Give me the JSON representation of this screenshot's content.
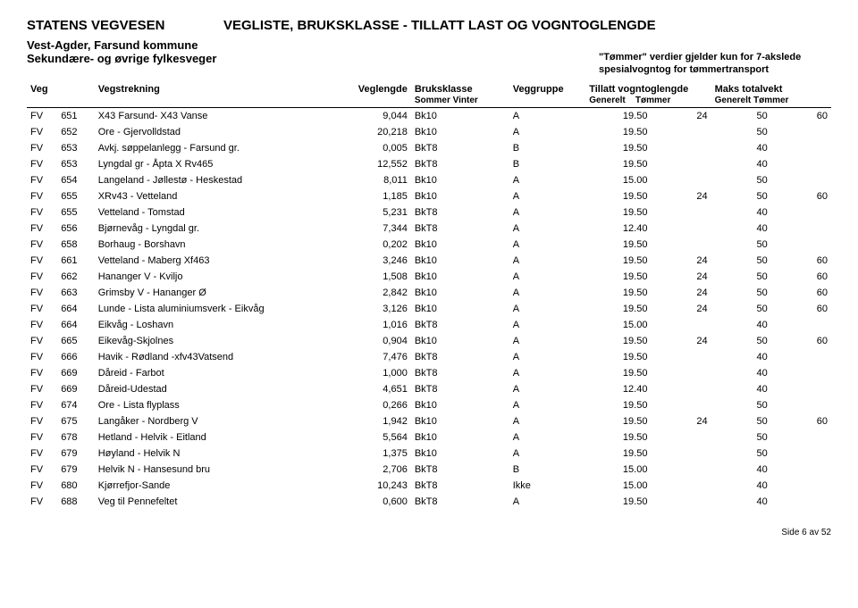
{
  "header": {
    "agency": "STATENS VEGVESEN",
    "title": "VEGLISTE, BRUKSKLASSE - TILLATT LAST OG VOGNTOGLENGDE",
    "region": "Vest-Agder, Farsund kommune",
    "subregion": "Sekundære- og øvrige fylkesveger",
    "timber_note_1": "\"Tømmer\" verdier gjelder kun for 7-akslede",
    "timber_note_2": "spesialvogntog for tømmertransport"
  },
  "columns": {
    "veg": "Veg",
    "strek": "Vegstrekning",
    "veglengde": "Veglengde",
    "bruksklasse": "Bruksklasse",
    "bruksklasse_sub": "Sommer  Vinter",
    "veggruppe": "Veggruppe",
    "vogntog": "Tillatt vogntoglengde",
    "vogntog_g": "Generelt",
    "vogntog_t": "Tømmer",
    "maks": "Maks totalvekt",
    "maks_g": "Generelt",
    "maks_t": "Tømmer"
  },
  "rows": [
    {
      "p": "FV",
      "nr": "651",
      "name": "X43 Farsund- X43 Vanse",
      "len": "9,044",
      "bk": "Bk10",
      "grp": "A",
      "vg": "19.50",
      "vt": "24",
      "mg": "50",
      "mt": "60"
    },
    {
      "p": "FV",
      "nr": "652",
      "name": "Ore - Gjervolldstad",
      "len": "20,218",
      "bk": "Bk10",
      "grp": "A",
      "vg": "19.50",
      "vt": "",
      "mg": "50",
      "mt": ""
    },
    {
      "p": "FV",
      "nr": "653",
      "name": "Avkj. søppelanlegg - Farsund gr.",
      "len": "0,005",
      "bk": "BkT8",
      "grp": "B",
      "vg": "19.50",
      "vt": "",
      "mg": "40",
      "mt": ""
    },
    {
      "p": "FV",
      "nr": "653",
      "name": "Lyngdal gr - Åpta X Rv465",
      "len": "12,552",
      "bk": "BkT8",
      "grp": "B",
      "vg": "19.50",
      "vt": "",
      "mg": "40",
      "mt": ""
    },
    {
      "p": "FV",
      "nr": "654",
      "name": "Langeland - Jøllestø - Heskestad",
      "len": "8,011",
      "bk": "Bk10",
      "grp": "A",
      "vg": "15.00",
      "vt": "",
      "mg": "50",
      "mt": ""
    },
    {
      "p": "FV",
      "nr": "655",
      "name": "XRv43 - Vetteland",
      "len": "1,185",
      "bk": "Bk10",
      "grp": "A",
      "vg": "19.50",
      "vt": "24",
      "mg": "50",
      "mt": "60"
    },
    {
      "p": "FV",
      "nr": "655",
      "name": "Vetteland - Tomstad",
      "len": "5,231",
      "bk": "BkT8",
      "grp": "A",
      "vg": "19.50",
      "vt": "",
      "mg": "40",
      "mt": ""
    },
    {
      "p": "FV",
      "nr": "656",
      "name": "Bjørnevåg - Lyngdal gr.",
      "len": "7,344",
      "bk": "BkT8",
      "grp": "A",
      "vg": "12.40",
      "vt": "",
      "mg": "40",
      "mt": ""
    },
    {
      "p": "FV",
      "nr": "658",
      "name": "Borhaug - Borshavn",
      "len": "0,202",
      "bk": "Bk10",
      "grp": "A",
      "vg": "19.50",
      "vt": "",
      "mg": "50",
      "mt": ""
    },
    {
      "p": "FV",
      "nr": "661",
      "name": "Vetteland - Maberg Xf463",
      "len": "3,246",
      "bk": "Bk10",
      "grp": "A",
      "vg": "19.50",
      "vt": "24",
      "mg": "50",
      "mt": "60"
    },
    {
      "p": "FV",
      "nr": "662",
      "name": "Hananger V - Kviljo",
      "len": "1,508",
      "bk": "Bk10",
      "grp": "A",
      "vg": "19.50",
      "vt": "24",
      "mg": "50",
      "mt": "60"
    },
    {
      "p": "FV",
      "nr": "663",
      "name": "Grimsby V - Hananger Ø",
      "len": "2,842",
      "bk": "Bk10",
      "grp": "A",
      "vg": "19.50",
      "vt": "24",
      "mg": "50",
      "mt": "60"
    },
    {
      "p": "FV",
      "nr": "664",
      "name": "Lunde - Lista aluminiumsverk - Eikvåg",
      "len": "3,126",
      "bk": "Bk10",
      "grp": "A",
      "vg": "19.50",
      "vt": "24",
      "mg": "50",
      "mt": "60"
    },
    {
      "p": "FV",
      "nr": "664",
      "name": "Eikvåg - Loshavn",
      "len": "1,016",
      "bk": "BkT8",
      "grp": "A",
      "vg": "15.00",
      "vt": "",
      "mg": "40",
      "mt": ""
    },
    {
      "p": "FV",
      "nr": "665",
      "name": "Eikevåg-Skjolnes",
      "len": "0,904",
      "bk": "Bk10",
      "grp": "A",
      "vg": "19.50",
      "vt": "24",
      "mg": "50",
      "mt": "60"
    },
    {
      "p": "FV",
      "nr": "666",
      "name": "Havik - Rødland -xfv43Vatsend",
      "len": "7,476",
      "bk": "BkT8",
      "grp": "A",
      "vg": "19.50",
      "vt": "",
      "mg": "40",
      "mt": ""
    },
    {
      "p": "FV",
      "nr": "669",
      "name": "Dåreid - Farbot",
      "len": "1,000",
      "bk": "BkT8",
      "grp": "A",
      "vg": "19.50",
      "vt": "",
      "mg": "40",
      "mt": ""
    },
    {
      "p": "FV",
      "nr": "669",
      "name": "Dåreid-Udestad",
      "len": "4,651",
      "bk": "BkT8",
      "grp": "A",
      "vg": "12.40",
      "vt": "",
      "mg": "40",
      "mt": ""
    },
    {
      "p": "FV",
      "nr": "674",
      "name": "Ore - Lista flyplass",
      "len": "0,266",
      "bk": "Bk10",
      "grp": "A",
      "vg": "19.50",
      "vt": "",
      "mg": "50",
      "mt": ""
    },
    {
      "p": "FV",
      "nr": "675",
      "name": "Langåker - Nordberg V",
      "len": "1,942",
      "bk": "Bk10",
      "grp": "A",
      "vg": "19.50",
      "vt": "24",
      "mg": "50",
      "mt": "60"
    },
    {
      "p": "FV",
      "nr": "678",
      "name": "Hetland - Helvik - Eitland",
      "len": "5,564",
      "bk": "Bk10",
      "grp": "A",
      "vg": "19.50",
      "vt": "",
      "mg": "50",
      "mt": ""
    },
    {
      "p": "FV",
      "nr": "679",
      "name": "Høyland - Helvik N",
      "len": "1,375",
      "bk": "Bk10",
      "grp": "A",
      "vg": "19.50",
      "vt": "",
      "mg": "50",
      "mt": ""
    },
    {
      "p": "FV",
      "nr": "679",
      "name": "Helvik N - Hansesund bru",
      "len": "2,706",
      "bk": "BkT8",
      "grp": "B",
      "vg": "15.00",
      "vt": "",
      "mg": "40",
      "mt": ""
    },
    {
      "p": "FV",
      "nr": "680",
      "name": "Kjørrefjor-Sande",
      "len": "10,243",
      "bk": "BkT8",
      "grp": "Ikke",
      "vg": "15.00",
      "vt": "",
      "mg": "40",
      "mt": ""
    },
    {
      "p": "FV",
      "nr": "688",
      "name": "Veg til Pennefeltet",
      "len": "0,600",
      "bk": "BkT8",
      "grp": "A",
      "vg": "19.50",
      "vt": "",
      "mg": "40",
      "mt": ""
    }
  ],
  "footer": {
    "page": "Side 6 av 52"
  }
}
